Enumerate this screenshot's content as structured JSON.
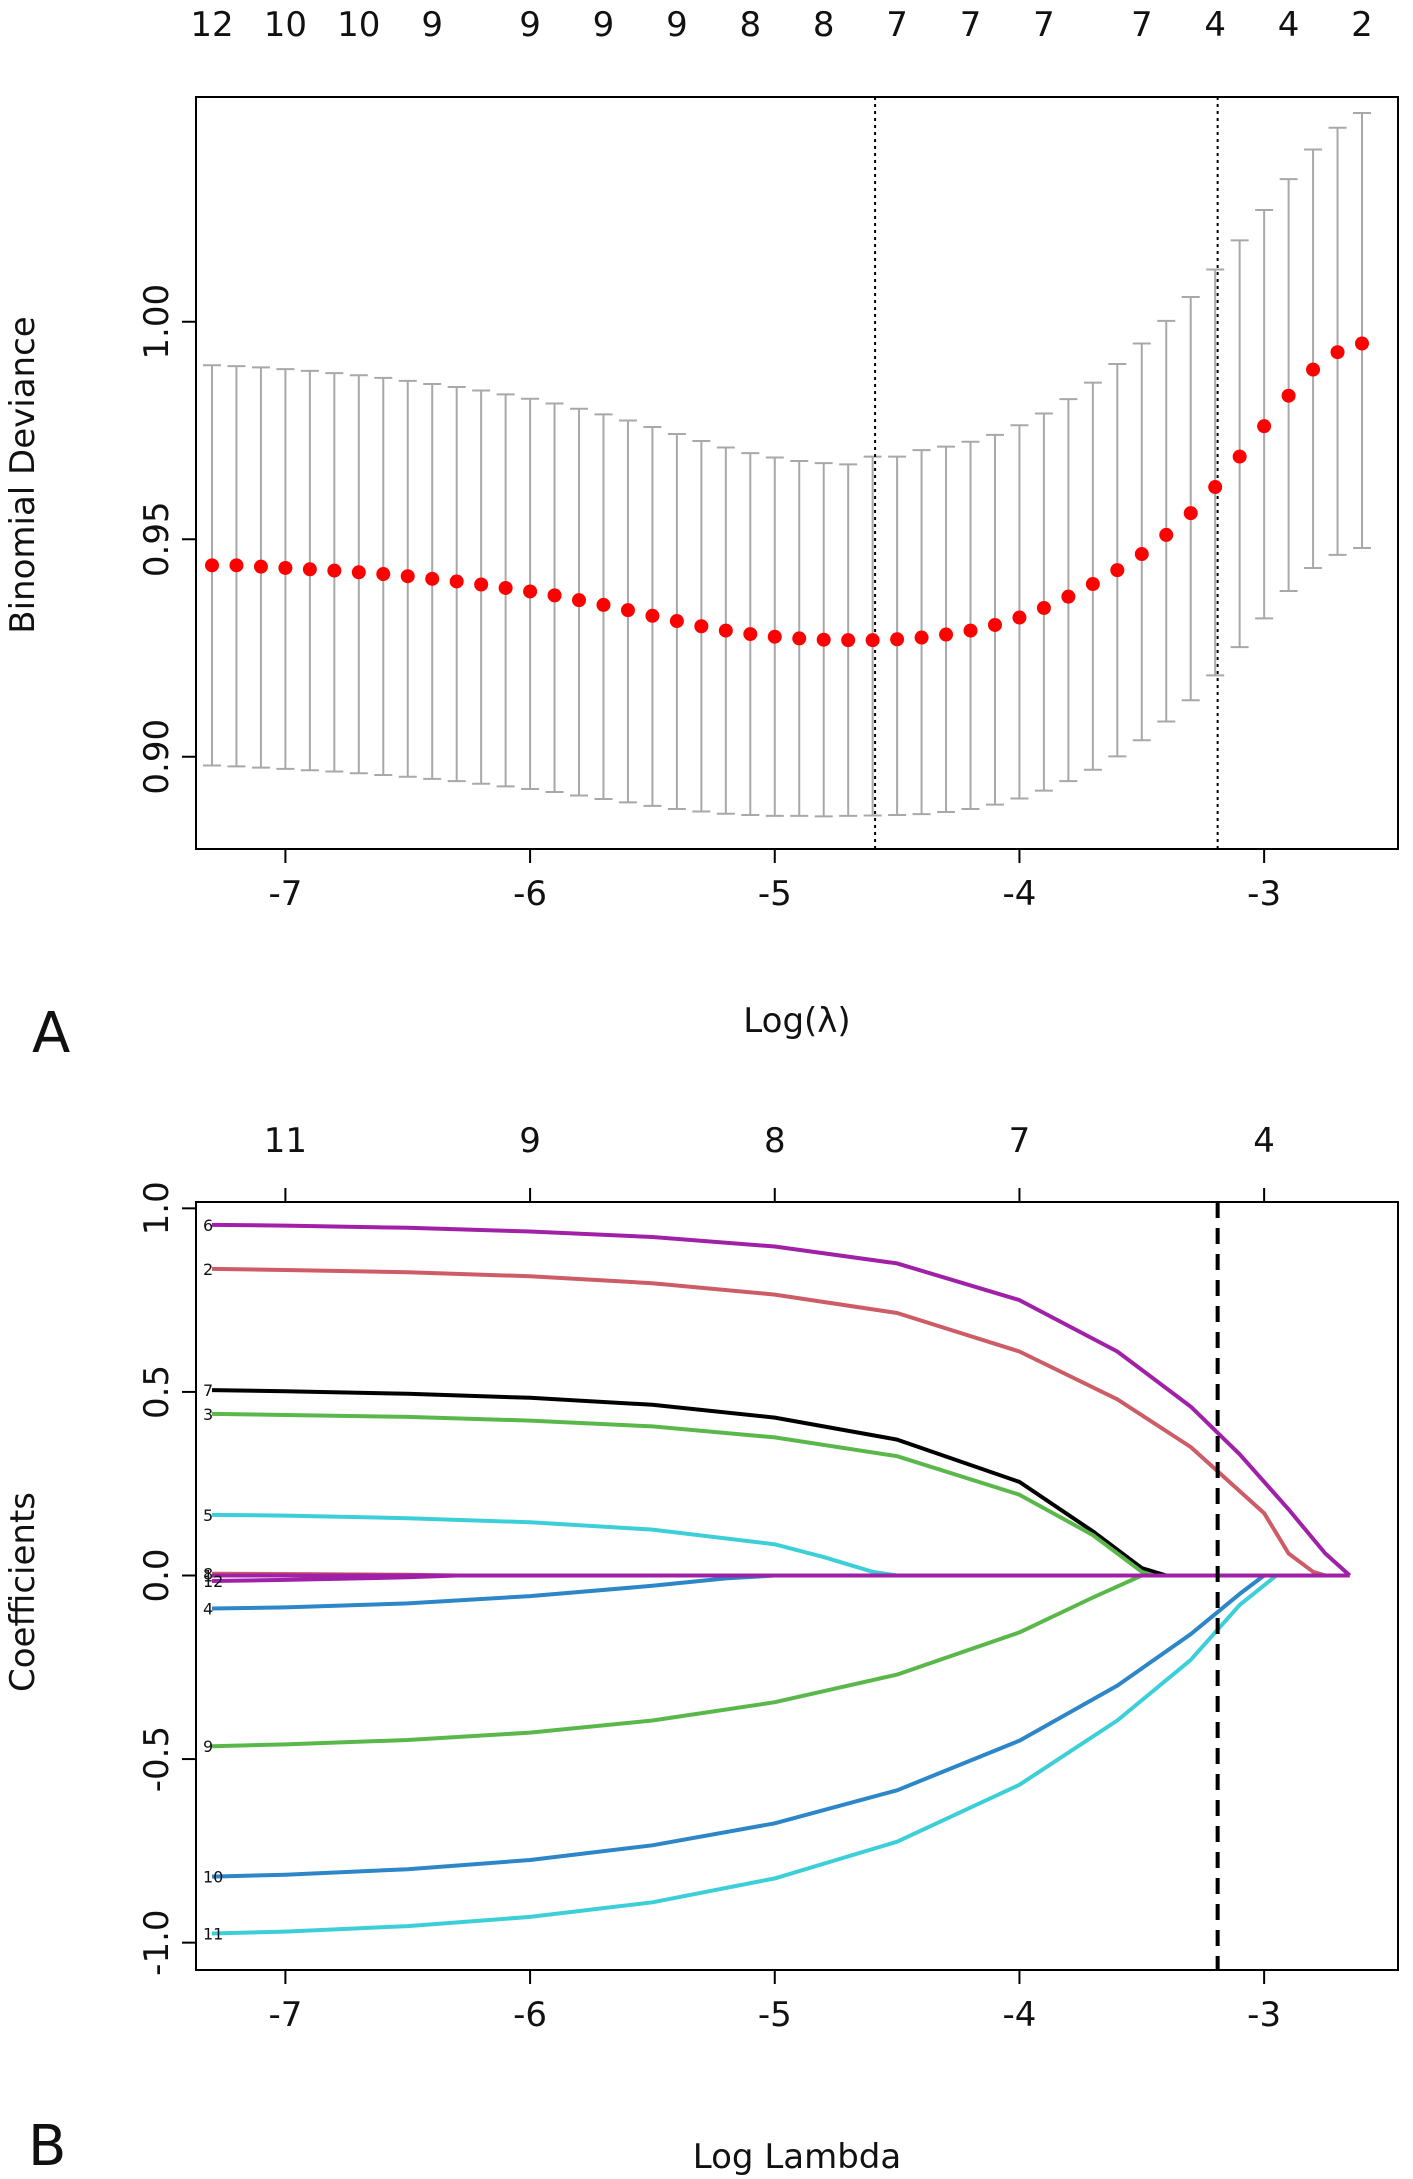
{
  "chart_data": [
    {
      "panel": "A",
      "type": "scatter",
      "subtype": "cross-validation error bars",
      "xlabel": "Log(λ)",
      "ylabel": "Binomial Deviance",
      "xlim": [
        -7.3,
        -2.6
      ],
      "ylim": [
        0.885,
        1.045
      ],
      "xticks": [
        -7,
        -6,
        -5,
        -4,
        -3
      ],
      "xtick_labels": [
        "-7",
        "-6",
        "-5",
        "-4",
        "-3"
      ],
      "yticks": [
        0.9,
        0.95,
        1.0
      ],
      "ytick_labels": [
        "0.90",
        "0.95",
        "1.00"
      ],
      "top_axis_labels": [
        "12",
        "10",
        "10",
        "9",
        "9",
        "9",
        "9",
        "8",
        "8",
        "7",
        "7",
        "7",
        "7",
        "4",
        "4",
        "2"
      ],
      "vlines": [
        -4.59,
        -3.19
      ],
      "x": [
        -7.3,
        -7.2,
        -7.1,
        -7.0,
        -6.9,
        -6.8,
        -6.7,
        -6.6,
        -6.5,
        -6.4,
        -6.3,
        -6.2,
        -6.1,
        -6.0,
        -5.9,
        -5.8,
        -5.7,
        -5.6,
        -5.5,
        -5.4,
        -5.3,
        -5.2,
        -5.1,
        -5.0,
        -4.9,
        -4.8,
        -4.7,
        -4.6,
        -4.5,
        -4.4,
        -4.3,
        -4.2,
        -4.1,
        -4.0,
        -3.9,
        -3.8,
        -3.7,
        -3.6,
        -3.5,
        -3.4,
        -3.3,
        -3.2,
        -3.1,
        -3.0,
        -2.9,
        -2.8,
        -2.7,
        -2.6
      ],
      "mean": [
        0.944,
        0.944,
        0.9437,
        0.9434,
        0.9431,
        0.9428,
        0.9424,
        0.942,
        0.9415,
        0.9409,
        0.9403,
        0.9396,
        0.9388,
        0.938,
        0.9371,
        0.936,
        0.9349,
        0.9337,
        0.9324,
        0.9312,
        0.93,
        0.929,
        0.9282,
        0.9276,
        0.9272,
        0.9269,
        0.9268,
        0.9268,
        0.927,
        0.9274,
        0.9281,
        0.929,
        0.9303,
        0.932,
        0.9342,
        0.9368,
        0.9397,
        0.9429,
        0.9466,
        0.951,
        0.956,
        0.962,
        0.969,
        0.976,
        0.983,
        0.989,
        0.993,
        0.995
      ],
      "upper": [
        0.99,
        0.9898,
        0.9895,
        0.9891,
        0.9887,
        0.9882,
        0.9877,
        0.9871,
        0.9864,
        0.9857,
        0.985,
        0.9842,
        0.9833,
        0.9823,
        0.9812,
        0.98,
        0.9787,
        0.9773,
        0.9758,
        0.9742,
        0.9726,
        0.9711,
        0.9698,
        0.9688,
        0.968,
        0.9675,
        0.9672,
        0.969,
        0.969,
        0.9705,
        0.9713,
        0.9724,
        0.974,
        0.9762,
        0.9789,
        0.9822,
        0.986,
        0.9903,
        0.995,
        1.0002,
        1.0057,
        1.012,
        1.0187,
        1.0257,
        1.0328,
        1.0396,
        1.0446,
        1.048
      ],
      "lower": [
        0.898,
        0.8978,
        0.8975,
        0.8972,
        0.8969,
        0.8966,
        0.8962,
        0.8958,
        0.8954,
        0.8949,
        0.8944,
        0.8938,
        0.8932,
        0.8926,
        0.8919,
        0.8911,
        0.8903,
        0.8895,
        0.8887,
        0.888,
        0.8874,
        0.8869,
        0.8866,
        0.8864,
        0.8864,
        0.8863,
        0.8864,
        0.8865,
        0.8866,
        0.8868,
        0.8873,
        0.888,
        0.889,
        0.8904,
        0.8922,
        0.8944,
        0.897,
        0.9001,
        0.9038,
        0.9081,
        0.913,
        0.9187,
        0.9252,
        0.9318,
        0.9381,
        0.9434,
        0.9464,
        0.948
      ]
    },
    {
      "panel": "B",
      "type": "line",
      "subtype": "coefficient paths",
      "xlabel": "Log Lambda",
      "ylabel": "Coefficients",
      "xlim": [
        -7.3,
        -2.6
      ],
      "ylim": [
        -1.05,
        1.02
      ],
      "xticks": [
        -7,
        -6,
        -5,
        -4,
        -3
      ],
      "xtick_labels": [
        "-7",
        "-6",
        "-5",
        "-4",
        "-3"
      ],
      "yticks": [
        -1.0,
        -0.5,
        0.0,
        0.5,
        1.0
      ],
      "ytick_labels": [
        "-1.0",
        "-0.5",
        "0.0",
        "0.5",
        "1.0"
      ],
      "top_axis_ticks": [
        -7,
        -6,
        -5,
        -4,
        -3
      ],
      "top_axis_labels": [
        "11",
        "9",
        "8",
        "7",
        "4"
      ],
      "vlines": [
        -3.19
      ],
      "series": [
        {
          "name": "6",
          "color": "#a020a8",
          "x": [
            -7.3,
            -7.0,
            -6.5,
            -6.0,
            -5.5,
            -5.0,
            -4.5,
            -4.0,
            -3.6,
            -3.3,
            -3.1,
            -2.9,
            -2.75,
            -2.65
          ],
          "y": [
            0.955,
            0.953,
            0.947,
            0.937,
            0.922,
            0.896,
            0.85,
            0.75,
            0.61,
            0.46,
            0.33,
            0.18,
            0.06,
            0.0
          ]
        },
        {
          "name": "2",
          "color": "#cd5c66",
          "x": [
            -7.3,
            -7.0,
            -6.5,
            -6.0,
            -5.5,
            -5.0,
            -4.5,
            -4.0,
            -3.6,
            -3.3,
            -3.0,
            -2.9,
            -2.8,
            -2.75
          ],
          "y": [
            0.835,
            0.832,
            0.826,
            0.815,
            0.796,
            0.765,
            0.715,
            0.61,
            0.48,
            0.35,
            0.17,
            0.06,
            0.01,
            0.0
          ]
        },
        {
          "name": "7",
          "color": "#000000",
          "x": [
            -7.3,
            -7.0,
            -6.5,
            -6.0,
            -5.5,
            -5.0,
            -4.5,
            -4.0,
            -3.7,
            -3.5,
            -3.4,
            -3.3
          ],
          "y": [
            0.505,
            0.502,
            0.495,
            0.484,
            0.465,
            0.43,
            0.37,
            0.255,
            0.12,
            0.02,
            0.0,
            0.0
          ]
        },
        {
          "name": "3",
          "color": "#5ab84b",
          "x": [
            -7.3,
            -7.0,
            -6.5,
            -6.0,
            -5.5,
            -5.0,
            -4.5,
            -4.0,
            -3.7,
            -3.5,
            -3.45
          ],
          "y": [
            0.44,
            0.437,
            0.432,
            0.422,
            0.406,
            0.376,
            0.325,
            0.22,
            0.11,
            0.01,
            0.0
          ]
        },
        {
          "name": "5",
          "color": "#3ccfd8",
          "x": [
            -7.3,
            -7.0,
            -6.5,
            -6.0,
            -5.5,
            -5.0,
            -4.8,
            -4.6,
            -4.5
          ],
          "y": [
            0.165,
            0.163,
            0.156,
            0.145,
            0.125,
            0.085,
            0.05,
            0.01,
            0.0
          ]
        },
        {
          "name": "8",
          "color": "#cd5c66",
          "x": [
            -7.3,
            -7.0,
            -6.5,
            -6.3
          ],
          "y": [
            0.005,
            0.004,
            0.002,
            0.0
          ]
        },
        {
          "name": "1",
          "color": "#000000",
          "x": [
            -7.3,
            -7.0
          ],
          "y": [
            0.0,
            0.0
          ]
        },
        {
          "name": "12",
          "color": "#a020a8",
          "x": [
            -7.3,
            -7.0,
            -6.5,
            -6.3
          ],
          "y": [
            -0.015,
            -0.012,
            -0.005,
            0.0
          ]
        },
        {
          "name": "4",
          "color": "#2c86c8",
          "x": [
            -7.3,
            -7.0,
            -6.5,
            -6.0,
            -5.5,
            -5.2,
            -5.0
          ],
          "y": [
            -0.09,
            -0.087,
            -0.076,
            -0.056,
            -0.028,
            -0.008,
            0.0
          ]
        },
        {
          "name": "9",
          "color": "#5ab84b",
          "x": [
            -7.3,
            -7.0,
            -6.5,
            -6.0,
            -5.5,
            -5.0,
            -4.5,
            -4.0,
            -3.7,
            -3.5
          ],
          "y": [
            -0.465,
            -0.46,
            -0.448,
            -0.428,
            -0.395,
            -0.345,
            -0.27,
            -0.155,
            -0.06,
            0.0
          ]
        },
        {
          "name": "10",
          "color": "#2c86c8",
          "x": [
            -7.3,
            -7.0,
            -6.5,
            -6.0,
            -5.5,
            -5.0,
            -4.5,
            -4.0,
            -3.6,
            -3.3,
            -3.1,
            -3.0
          ],
          "y": [
            -0.82,
            -0.815,
            -0.8,
            -0.775,
            -0.735,
            -0.675,
            -0.585,
            -0.45,
            -0.3,
            -0.16,
            -0.05,
            0.0
          ]
        },
        {
          "name": "11",
          "color": "#3ccfd8",
          "x": [
            -7.3,
            -7.0,
            -6.5,
            -6.0,
            -5.5,
            -5.0,
            -4.5,
            -4.0,
            -3.6,
            -3.3,
            -3.1,
            -2.95,
            -2.9
          ],
          "y": [
            -0.975,
            -0.97,
            -0.955,
            -0.93,
            -0.89,
            -0.825,
            -0.725,
            -0.57,
            -0.395,
            -0.23,
            -0.08,
            0.0,
            0.0
          ]
        }
      ],
      "zero_line_color": "#a020a8",
      "zero_line_x": [
        -7.3,
        -2.65
      ]
    }
  ],
  "panel_labels": [
    "A",
    "B"
  ]
}
